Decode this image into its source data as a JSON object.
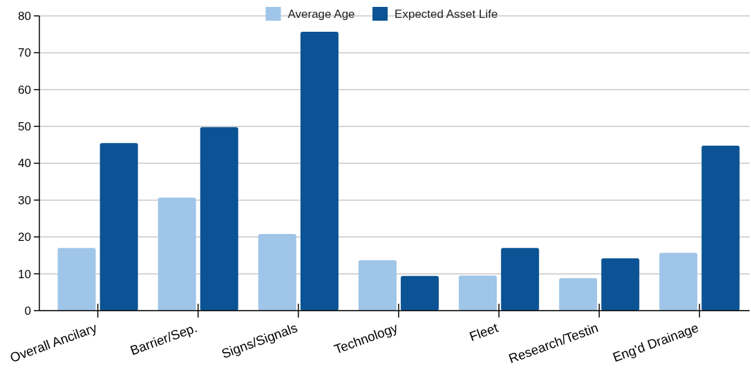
{
  "chart_data": {
    "type": "bar",
    "categories": [
      "Overall Ancilary",
      "Barrier/Sep.",
      "Signs/Signals",
      "Technology",
      "Fleet",
      "Research/Testin",
      "Eng'd Drainage"
    ],
    "series": [
      {
        "name": "Average Age",
        "color": "#9fc5e8",
        "values": [
          17,
          30.7,
          20.8,
          13.7,
          9.5,
          8.8,
          15.7
        ]
      },
      {
        "name": "Expected Asset Life",
        "color": "#0b5394",
        "values": [
          45.5,
          49.8,
          75.7,
          9.4,
          17,
          14.2,
          44.8
        ]
      }
    ],
    "ylim": [
      0,
      80
    ],
    "yticks": [
      0,
      10,
      20,
      30,
      40,
      50,
      60,
      70,
      80
    ],
    "grid": "y",
    "legend": "top"
  }
}
